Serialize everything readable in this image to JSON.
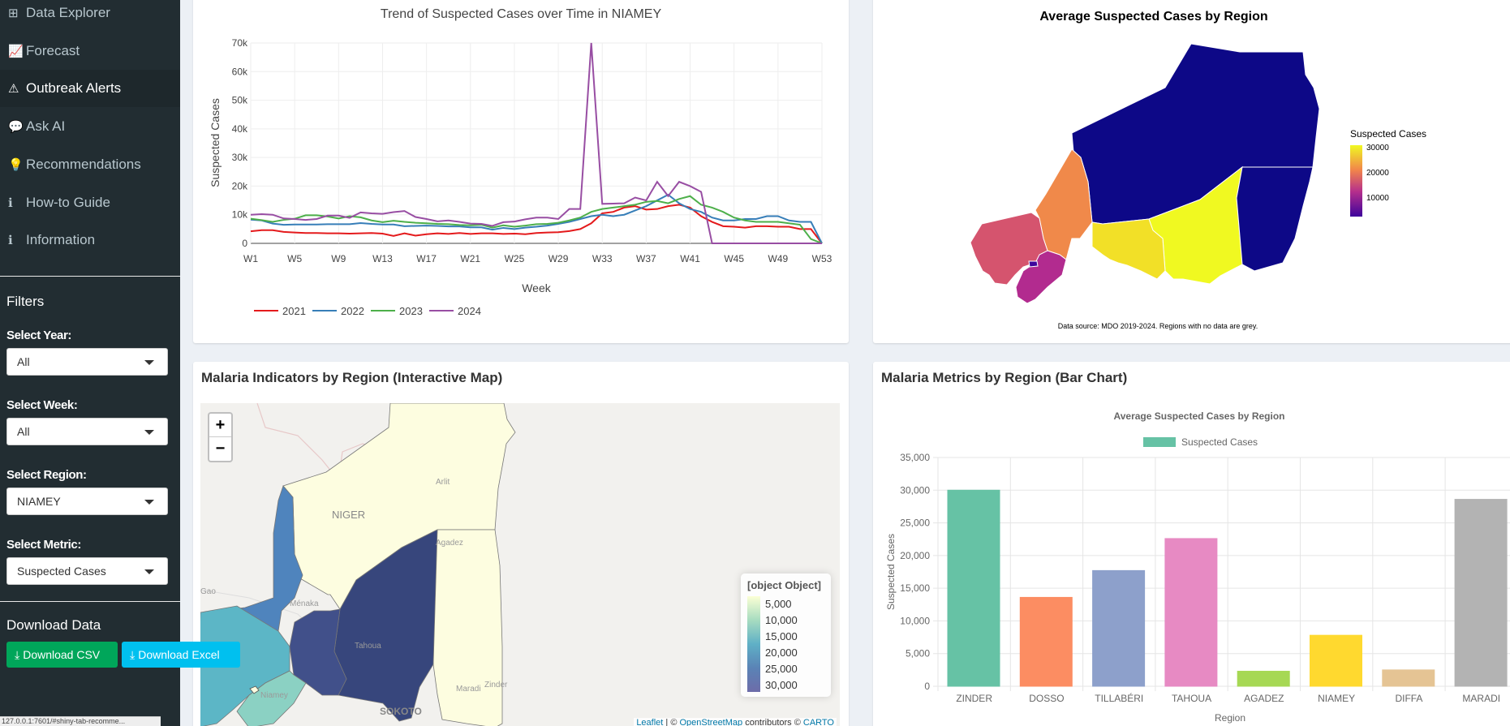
{
  "sidebar": {
    "nav": [
      {
        "icon": "table-icon",
        "glyph": "⊞",
        "label": "Data Explorer"
      },
      {
        "icon": "line-chart-icon",
        "glyph": "📈",
        "label": "Forecast"
      },
      {
        "icon": "warning-icon",
        "glyph": "⚠",
        "label": "Outbreak Alerts"
      },
      {
        "icon": "comment-icon",
        "glyph": "💬",
        "label": "Ask AI"
      },
      {
        "icon": "lightbulb-icon",
        "glyph": "💡",
        "label": "Recommendations"
      },
      {
        "icon": "info-icon",
        "glyph": "ℹ",
        "label": "How-to Guide"
      },
      {
        "icon": "info-icon",
        "glyph": "ℹ",
        "label": "Information"
      }
    ],
    "filters_title": "Filters",
    "filters": [
      {
        "label": "Select Year:",
        "value": "All"
      },
      {
        "label": "Select Week:",
        "value": "All"
      },
      {
        "label": "Select Region:",
        "value": "NIAMEY"
      },
      {
        "label": "Select Metric:",
        "value": "Suspected Cases"
      }
    ],
    "download_title": "Download Data",
    "download_csv": "Download CSV",
    "download_excel": "Download Excel",
    "status_url": "127.0.0.1:7601/#shiny-tab-recomme..."
  },
  "panels": {
    "line": {
      "chart_data": {
        "type": "line",
        "title": "Trend of Suspected Cases over Time in NIAMEY",
        "xlabel": "Week",
        "ylabel": "Suspected Cases",
        "x_ticks": [
          "W1",
          "W5",
          "W9",
          "W13",
          "W17",
          "W21",
          "W25",
          "W29",
          "W33",
          "W37",
          "W41",
          "W45",
          "W49",
          "W53"
        ],
        "y_ticks": [
          "0",
          "10k",
          "20k",
          "30k",
          "40k",
          "50k",
          "60k",
          "70k"
        ],
        "ylim": [
          0,
          70000
        ],
        "x": [
          1,
          2,
          3,
          4,
          5,
          6,
          7,
          8,
          9,
          10,
          11,
          12,
          13,
          14,
          15,
          16,
          17,
          18,
          19,
          20,
          21,
          22,
          23,
          24,
          25,
          26,
          27,
          28,
          29,
          30,
          31,
          32,
          33,
          34,
          35,
          36,
          37,
          38,
          39,
          40,
          41,
          42,
          43,
          44,
          45,
          46,
          47,
          48,
          49,
          50,
          51,
          52,
          53
        ],
        "series": [
          {
            "name": "2021",
            "color": "#e41a1c",
            "values": [
              4200,
              4600,
              4600,
              4000,
              3800,
              3600,
              3600,
              3500,
              3500,
              3400,
              3500,
              3600,
              3400,
              2600,
              3500,
              2700,
              3200,
              3500,
              3300,
              3600,
              3300,
              3500,
              3500,
              3300,
              3400,
              3200,
              3600,
              3800,
              3900,
              4300,
              5000,
              7000,
              10500,
              11000,
              12500,
              13000,
              11800,
              12000,
              13000,
              13500,
              12500,
              9500,
              7500,
              6000,
              5800,
              5500,
              6000,
              6000,
              5800,
              5800,
              5000,
              5000,
              0
            ]
          },
          {
            "name": "2022",
            "color": "#377eb8",
            "values": [
              8300,
              8000,
              6900,
              6500,
              6600,
              6600,
              6600,
              6700,
              6700,
              6700,
              7100,
              6800,
              6600,
              6600,
              6000,
              6100,
              6200,
              6100,
              5900,
              5900,
              5600,
              5600,
              4800,
              5400,
              5000,
              5500,
              5800,
              6200,
              6800,
              7500,
              8500,
              9500,
              10000,
              9500,
              10000,
              11500,
              13000,
              15000,
              17000,
              14000,
              12000,
              11000,
              9000,
              8000,
              8000,
              8500,
              8500,
              9500,
              9500,
              8000,
              7500,
              7500,
              0
            ]
          },
          {
            "name": "2023",
            "color": "#4daf4a",
            "values": [
              8600,
              8100,
              7500,
              8200,
              8600,
              9800,
              9800,
              9400,
              8700,
              9500,
              9100,
              8000,
              7400,
              7900,
              7500,
              7200,
              7000,
              6800,
              6700,
              6400,
              6300,
              6500,
              5500,
              6300,
              5800,
              6200,
              6700,
              6800,
              7200,
              8000,
              9000,
              11000,
              12000,
              12500,
              13000,
              13500,
              14500,
              14800,
              14000,
              15500,
              16500,
              13500,
              12500,
              11000,
              9000,
              8000,
              7500,
              7500,
              7500,
              7000,
              6500,
              1500,
              0
            ]
          },
          {
            "name": "2024",
            "color": "#984ea3",
            "values": [
              10000,
              10200,
              10000,
              8700,
              8500,
              8200,
              8500,
              9700,
              9700,
              8900,
              10800,
              10500,
              10300,
              10900,
              11300,
              9200,
              8500,
              7700,
              8000,
              7500,
              6900,
              6800,
              6100,
              7400,
              7600,
              8400,
              9000,
              9000,
              8500,
              12000,
              12000,
              70000,
              13800,
              13900,
              14000,
              16000,
              15000,
              21500,
              16500,
              21500,
              20000,
              18000,
              0,
              0,
              0,
              0,
              0,
              0,
              0,
              0,
              0,
              0,
              0
            ]
          }
        ]
      }
    },
    "choropleth": {
      "chart_data": {
        "type": "map",
        "title": "Average Suspected Cases by Region",
        "legend_title": "Suspected Cases",
        "legend_ticks": [
          "30000",
          "20000",
          "10000"
        ],
        "regions": [
          {
            "name": "AGADEZ",
            "color": "#0d0887"
          },
          {
            "name": "DIFFA",
            "color": "#0d0887"
          },
          {
            "name": "TAHOUA",
            "color": "#f0894a"
          },
          {
            "name": "ZINDER",
            "color": "#f0f921"
          },
          {
            "name": "MARADI",
            "color": "#f2e027"
          },
          {
            "name": "TILLABERI",
            "color": "#d5546e"
          },
          {
            "name": "DOSSO",
            "color": "#b22b8f"
          },
          {
            "name": "NIAMEY",
            "color": "#3e049c"
          }
        ]
      },
      "source_note": "Data source: MDO 2019-2024. Regions with no data are grey."
    },
    "leaflet": {
      "title": "Malaria Indicators by Region (Interactive Map)",
      "zoom_in": "+",
      "zoom_out": "−",
      "legend_title": "[object Object]",
      "legend_ticks": [
        "5,000",
        "10,000",
        "15,000",
        "20,000",
        "25,000",
        "30,000"
      ],
      "places": [
        "Arlit",
        "NIGER",
        "Agadez",
        "Gao",
        "Ménaka",
        "Tahoua",
        "Niamey",
        "Maradi",
        "Zinder",
        "SOKOTO"
      ],
      "attribution": {
        "leaflet": "Leaflet",
        "sep": " | © ",
        "osm": "OpenStreetMap",
        "contrib": " contributors © ",
        "carto": "CARTO"
      }
    },
    "bar": {
      "title": "Malaria Metrics by Region (Bar Chart)",
      "chart_data": {
        "type": "bar",
        "title": "Average Suspected Cases by Region",
        "xlabel": "Region",
        "ylabel": "Suspected Cases",
        "legend": [
          "Suspected Cases"
        ],
        "categories": [
          "ZINDER",
          "DOSSO",
          "TILLABÉRI",
          "TAHOUA",
          "AGADEZ",
          "NIAMEY",
          "DIFFA",
          "MARADI"
        ],
        "values": [
          30000,
          13600,
          17700,
          22600,
          2300,
          7800,
          2500,
          28600
        ],
        "colors": [
          "#66c2a5",
          "#fc8d62",
          "#8da0cb",
          "#e78ac3",
          "#a6d854",
          "#ffd92f",
          "#e5c494",
          "#b3b3b3"
        ],
        "y_ticks": [
          "0",
          "5,000",
          "10,000",
          "15,000",
          "20,000",
          "25,000",
          "30,000",
          "35,000"
        ],
        "ylim": [
          0,
          35000
        ]
      }
    }
  }
}
